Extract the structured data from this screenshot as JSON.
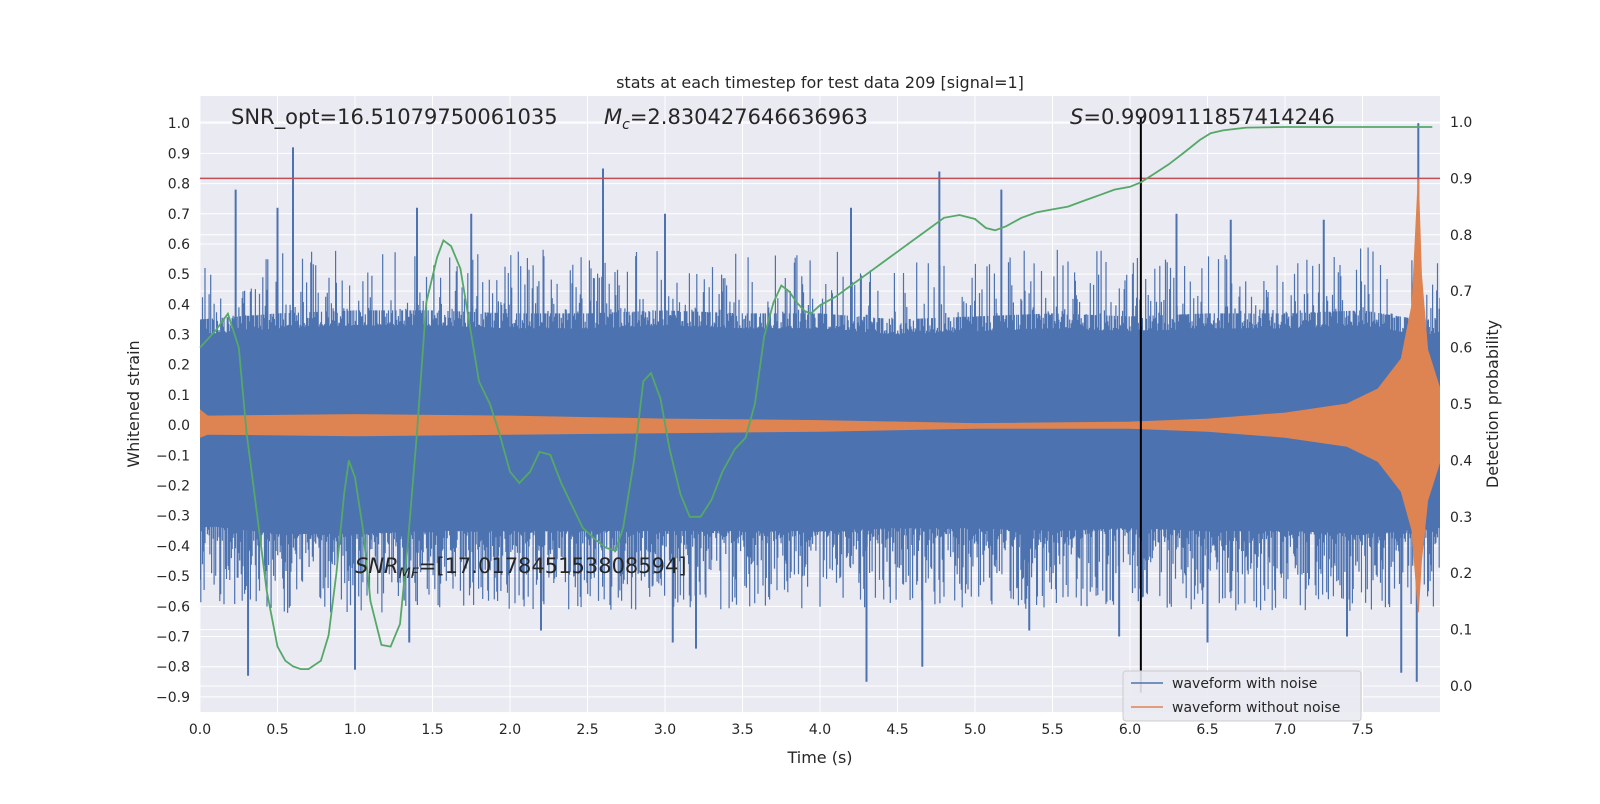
{
  "chart_data": {
    "type": "line",
    "title": "stats at each timestep for test data 209 [signal=1]",
    "xlabel": "Time (s)",
    "ylabel": "Whitened strain",
    "y2label": "Detection probability",
    "xlim": [
      0.0,
      8.0
    ],
    "ylim": [
      -0.95,
      1.09
    ],
    "y2lim": [
      -0.046,
      1.046
    ],
    "xticks": [
      "0.0",
      "0.5",
      "1.0",
      "1.5",
      "2.0",
      "2.5",
      "3.0",
      "3.5",
      "4.0",
      "4.5",
      "5.0",
      "5.5",
      "6.0",
      "6.5",
      "7.0",
      "7.5"
    ],
    "yticks": [
      "1.0",
      "0.9",
      "0.8",
      "0.7",
      "0.6",
      "0.5",
      "0.4",
      "0.3",
      "0.2",
      "0.1",
      "0.0",
      "-0.1",
      "-0.2",
      "-0.3",
      "-0.4",
      "-0.5",
      "-0.6",
      "-0.7",
      "-0.8",
      "-0.9"
    ],
    "y2ticks": [
      "1.0",
      "0.9",
      "0.8",
      "0.7",
      "0.6",
      "0.5",
      "0.4",
      "0.3",
      "0.2",
      "0.1",
      "0.0"
    ],
    "grid": true,
    "legend_position": "lower-right",
    "annotations": {
      "snr_opt": "SNR_opt=16.51079750061035",
      "mc_symbol": "M",
      "mc_sub": "c",
      "mc_value": "=2.830427646636963",
      "s_symbol": "S",
      "s_value": "=0.9909111857414246",
      "snr_mf_symbol": "SNR",
      "snr_mf_sub": "MF",
      "snr_mf_value": "=[17.017845153808594]"
    },
    "threshold_line": {
      "y2": 0.9,
      "color": "#c44e52"
    },
    "vertical_marker": {
      "x": 6.07,
      "color": "#000000"
    },
    "series": [
      {
        "name": "waveform with noise",
        "color": "#4c72b0",
        "envelope_upper": [
          [
            0.0,
            0.3
          ],
          [
            0.5,
            0.32
          ],
          [
            1.0,
            0.33
          ],
          [
            1.5,
            0.33
          ],
          [
            2.0,
            0.32
          ],
          [
            2.5,
            0.32
          ],
          [
            3.0,
            0.33
          ],
          [
            3.5,
            0.32
          ],
          [
            4.0,
            0.32
          ],
          [
            4.5,
            0.3
          ],
          [
            5.0,
            0.31
          ],
          [
            5.5,
            0.32
          ],
          [
            6.0,
            0.31
          ],
          [
            6.5,
            0.32
          ],
          [
            7.0,
            0.32
          ],
          [
            7.5,
            0.33
          ],
          [
            7.86,
            0.3
          ],
          [
            8.0,
            0.3
          ]
        ],
        "envelope_lower": [
          [
            0.0,
            -0.33
          ],
          [
            0.5,
            -0.36
          ],
          [
            1.0,
            -0.36
          ],
          [
            1.5,
            -0.35
          ],
          [
            2.0,
            -0.35
          ],
          [
            2.5,
            -0.35
          ],
          [
            3.0,
            -0.35
          ],
          [
            3.5,
            -0.35
          ],
          [
            4.0,
            -0.35
          ],
          [
            4.5,
            -0.34
          ],
          [
            5.0,
            -0.34
          ],
          [
            5.5,
            -0.35
          ],
          [
            6.0,
            -0.34
          ],
          [
            6.5,
            -0.35
          ],
          [
            7.0,
            -0.35
          ],
          [
            7.5,
            -0.36
          ],
          [
            8.0,
            -0.34
          ]
        ],
        "spikes_up": [
          [
            0.6,
            0.92
          ],
          [
            0.23,
            0.78
          ],
          [
            0.5,
            0.72
          ],
          [
            2.6,
            0.85
          ],
          [
            4.77,
            0.84
          ],
          [
            5.17,
            0.78
          ],
          [
            7.86,
            1.0
          ],
          [
            1.4,
            0.72
          ],
          [
            3.0,
            0.7
          ],
          [
            6.3,
            0.7
          ],
          [
            6.65,
            0.68
          ],
          [
            1.75,
            0.7
          ],
          [
            4.2,
            0.72
          ],
          [
            7.25,
            0.68
          ]
        ],
        "spikes_down": [
          [
            0.31,
            -0.83
          ],
          [
            1.0,
            -0.81
          ],
          [
            4.3,
            -0.85
          ],
          [
            4.66,
            -0.8
          ],
          [
            7.85,
            -0.85
          ],
          [
            3.05,
            -0.72
          ],
          [
            3.2,
            -0.74
          ],
          [
            1.35,
            -0.72
          ],
          [
            5.93,
            -0.7
          ],
          [
            6.5,
            -0.72
          ],
          [
            7.4,
            -0.7
          ],
          [
            2.2,
            -0.68
          ],
          [
            5.35,
            -0.68
          ],
          [
            7.75,
            -0.82
          ]
        ]
      },
      {
        "name": "waveform without noise",
        "color": "#dd8452",
        "envelope_upper": [
          [
            0.0,
            0.05
          ],
          [
            0.05,
            0.03
          ],
          [
            1.0,
            0.035
          ],
          [
            2.0,
            0.03
          ],
          [
            3.0,
            0.02
          ],
          [
            4.0,
            0.015
          ],
          [
            5.0,
            0.005
          ],
          [
            6.0,
            0.01
          ],
          [
            6.5,
            0.02
          ],
          [
            7.0,
            0.04
          ],
          [
            7.4,
            0.07
          ],
          [
            7.6,
            0.12
          ],
          [
            7.75,
            0.22
          ],
          [
            7.82,
            0.4
          ],
          [
            7.86,
            0.82
          ],
          [
            7.88,
            0.5
          ],
          [
            7.92,
            0.25
          ],
          [
            8.0,
            0.12
          ]
        ],
        "envelope_lower": [
          [
            0.0,
            -0.04
          ],
          [
            0.05,
            -0.03
          ],
          [
            1.0,
            -0.035
          ],
          [
            2.0,
            -0.03
          ],
          [
            3.0,
            -0.025
          ],
          [
            4.0,
            -0.02
          ],
          [
            5.0,
            -0.01
          ],
          [
            6.0,
            -0.01
          ],
          [
            6.5,
            -0.02
          ],
          [
            7.0,
            -0.04
          ],
          [
            7.4,
            -0.07
          ],
          [
            7.6,
            -0.12
          ],
          [
            7.75,
            -0.22
          ],
          [
            7.82,
            -0.35
          ],
          [
            7.86,
            -0.62
          ],
          [
            7.88,
            -0.45
          ],
          [
            7.92,
            -0.25
          ],
          [
            8.0,
            -0.12
          ]
        ]
      },
      {
        "name": "detection probability",
        "color": "#55a868",
        "axis": "right",
        "points": [
          [
            0.0,
            0.6
          ],
          [
            0.1,
            0.63
          ],
          [
            0.18,
            0.66
          ],
          [
            0.25,
            0.6
          ],
          [
            0.3,
            0.45
          ],
          [
            0.37,
            0.3
          ],
          [
            0.43,
            0.17
          ],
          [
            0.5,
            0.07
          ],
          [
            0.55,
            0.045
          ],
          [
            0.6,
            0.035
          ],
          [
            0.65,
            0.03
          ],
          [
            0.7,
            0.03
          ],
          [
            0.78,
            0.045
          ],
          [
            0.83,
            0.09
          ],
          [
            0.88,
            0.2
          ],
          [
            0.93,
            0.34
          ],
          [
            0.96,
            0.4
          ],
          [
            1.0,
            0.37
          ],
          [
            1.05,
            0.28
          ],
          [
            1.1,
            0.15
          ],
          [
            1.17,
            0.073
          ],
          [
            1.23,
            0.07
          ],
          [
            1.29,
            0.11
          ],
          [
            1.34,
            0.25
          ],
          [
            1.4,
            0.45
          ],
          [
            1.46,
            0.68
          ],
          [
            1.53,
            0.76
          ],
          [
            1.57,
            0.79
          ],
          [
            1.62,
            0.78
          ],
          [
            1.68,
            0.74
          ],
          [
            1.74,
            0.64
          ],
          [
            1.8,
            0.54
          ],
          [
            1.87,
            0.5
          ],
          [
            1.93,
            0.45
          ],
          [
            2.0,
            0.38
          ],
          [
            2.06,
            0.36
          ],
          [
            2.13,
            0.38
          ],
          [
            2.19,
            0.415
          ],
          [
            2.26,
            0.41
          ],
          [
            2.33,
            0.36
          ],
          [
            2.4,
            0.32
          ],
          [
            2.47,
            0.28
          ],
          [
            2.55,
            0.26
          ],
          [
            2.62,
            0.245
          ],
          [
            2.68,
            0.24
          ],
          [
            2.73,
            0.28
          ],
          [
            2.8,
            0.4
          ],
          [
            2.86,
            0.54
          ],
          [
            2.91,
            0.555
          ],
          [
            2.97,
            0.51
          ],
          [
            3.03,
            0.42
          ],
          [
            3.1,
            0.34
          ],
          [
            3.16,
            0.3
          ],
          [
            3.23,
            0.3
          ],
          [
            3.3,
            0.33
          ],
          [
            3.37,
            0.38
          ],
          [
            3.45,
            0.42
          ],
          [
            3.52,
            0.44
          ],
          [
            3.58,
            0.5
          ],
          [
            3.64,
            0.62
          ],
          [
            3.7,
            0.68
          ],
          [
            3.75,
            0.71
          ],
          [
            3.8,
            0.7
          ],
          [
            3.85,
            0.68
          ],
          [
            3.9,
            0.665
          ],
          [
            3.94,
            0.66
          ],
          [
            4.0,
            0.675
          ],
          [
            4.1,
            0.69
          ],
          [
            4.2,
            0.71
          ],
          [
            4.3,
            0.73
          ],
          [
            4.4,
            0.75
          ],
          [
            4.5,
            0.77
          ],
          [
            4.6,
            0.79
          ],
          [
            4.7,
            0.81
          ],
          [
            4.8,
            0.83
          ],
          [
            4.9,
            0.835
          ],
          [
            5.0,
            0.828
          ],
          [
            5.07,
            0.812
          ],
          [
            5.13,
            0.808
          ],
          [
            5.2,
            0.815
          ],
          [
            5.3,
            0.83
          ],
          [
            5.4,
            0.84
          ],
          [
            5.5,
            0.845
          ],
          [
            5.6,
            0.85
          ],
          [
            5.7,
            0.86
          ],
          [
            5.8,
            0.87
          ],
          [
            5.9,
            0.88
          ],
          [
            6.0,
            0.885
          ],
          [
            6.07,
            0.893
          ],
          [
            6.15,
            0.907
          ],
          [
            6.25,
            0.925
          ],
          [
            6.35,
            0.946
          ],
          [
            6.45,
            0.968
          ],
          [
            6.52,
            0.98
          ],
          [
            6.6,
            0.985
          ],
          [
            6.75,
            0.99
          ],
          [
            7.0,
            0.991
          ],
          [
            7.5,
            0.991
          ],
          [
            7.95,
            0.991
          ]
        ]
      }
    ]
  }
}
